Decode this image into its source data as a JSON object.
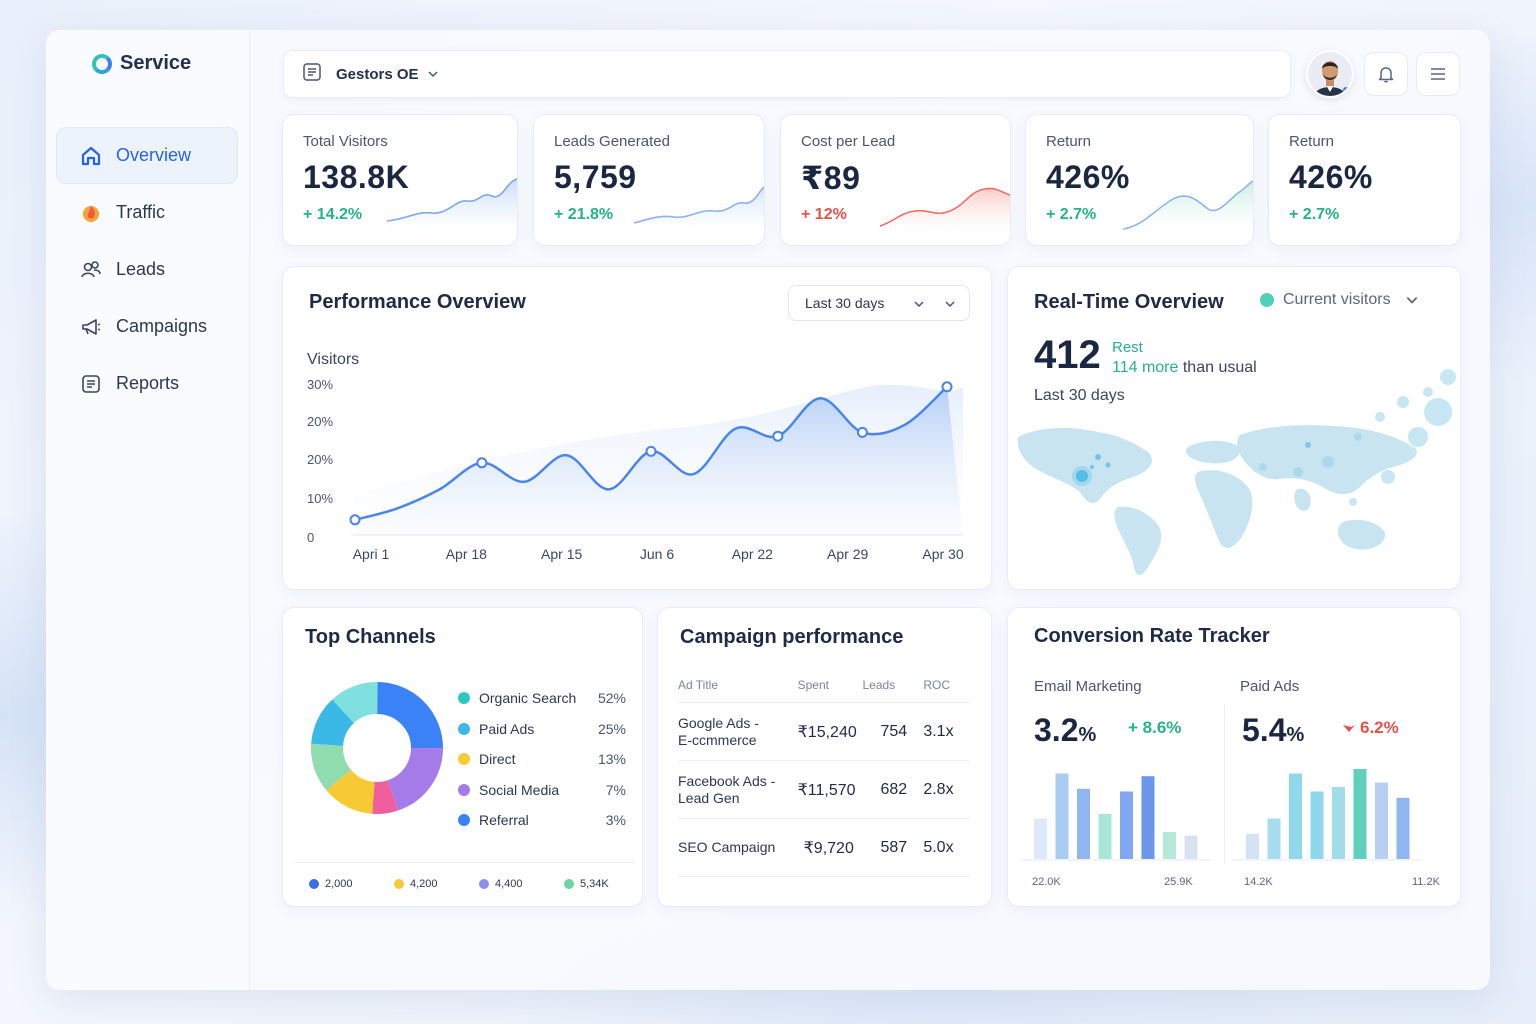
{
  "brand": {
    "name": "Service"
  },
  "sidebar": {
    "items": [
      {
        "label": "Overview",
        "icon": "home-icon",
        "active": true
      },
      {
        "label": "Traffic",
        "icon": "fire-icon",
        "active": false
      },
      {
        "label": "Leads",
        "icon": "users-icon",
        "active": false
      },
      {
        "label": "Campaigns",
        "icon": "megaphone-icon",
        "active": false
      },
      {
        "label": "Reports",
        "icon": "document-icon",
        "active": false
      }
    ]
  },
  "topbar": {
    "workspace": "Gestors OE"
  },
  "kpis": [
    {
      "label": "Total Visitors",
      "value": "138.8K",
      "delta": "+ 14.2%",
      "trend": "up"
    },
    {
      "label": "Leads Generated",
      "value": "5,759",
      "delta": "+ 21.8%",
      "trend": "up"
    },
    {
      "label": "Cost per Lead",
      "value": "₹89",
      "delta": "+ 12%",
      "trend": "down"
    },
    {
      "label": "Return",
      "value": "426%",
      "delta": "+ 2.7%",
      "trend": "up"
    },
    {
      "label": "Return",
      "value": "426%",
      "delta": "+ 2.7%",
      "trend": "up"
    }
  ],
  "performance": {
    "title": "Performance Overview",
    "range": "Last 30 days",
    "ylabel": "Visitors"
  },
  "chart_data": {
    "type": "line",
    "ylabel": "Visitors",
    "y_tick_labels": [
      "0",
      "10%",
      "20%",
      "20%",
      "30%"
    ],
    "x_tick_labels": [
      "Apri 1",
      "Apr 18",
      "Apr 15",
      "Jun 6",
      "Apr  22",
      "Apr  29",
      "Apr  30"
    ],
    "ylim": [
      0,
      40
    ],
    "series": [
      {
        "values": [
          4,
          7,
          12,
          19,
          14,
          21,
          12,
          22,
          16,
          28,
          26,
          36,
          27,
          29,
          39
        ]
      }
    ],
    "grid": false
  },
  "realtime": {
    "title": "Real-Time Overview",
    "filter": "Current visitors",
    "value": "412",
    "status": "Rest",
    "compare_highlight": "114 more",
    "compare_rest": "than usual",
    "period": "Last 30 days"
  },
  "channels": {
    "title": "Top Channels",
    "items": [
      {
        "name": "Organic Search",
        "pct": "52%",
        "color": "#2fc6c2"
      },
      {
        "name": "Paid Ads",
        "pct": "25%",
        "color": "#3bb9e6"
      },
      {
        "name": "Direct",
        "pct": "13%",
        "color": "#f7c935"
      },
      {
        "name": "Social Media",
        "pct": "7%",
        "color": "#a57bea"
      },
      {
        "name": "Referral",
        "pct": "3%",
        "color": "#3b82f6"
      }
    ],
    "footer": [
      {
        "value": "2,000",
        "color": "#3b6fe8"
      },
      {
        "value": "4,200",
        "color": "#f7c935"
      },
      {
        "value": "4,400",
        "color": "#8b8ff0"
      },
      {
        "value": "5,34K",
        "color": "#6fd3a8"
      }
    ]
  },
  "campaigns": {
    "title": "Campaign performance",
    "headers": [
      "Ad Title",
      "Spent",
      "Leads",
      "ROC"
    ],
    "rows": [
      {
        "title_line1": "Google Ads -",
        "title_line2": "E-ccmmerce",
        "spent": "₹15,240",
        "leads": "754",
        "roc": "3.1x"
      },
      {
        "title_line1": "Facebook Ads -",
        "title_line2": "Lead Gen",
        "spent": "₹11,570",
        "leads": "682",
        "roc": "2.8x"
      },
      {
        "title_line1": "SEO Campaign",
        "title_line2": "",
        "spent": "₹9,720",
        "leads": "587",
        "roc": "5.0x"
      }
    ]
  },
  "conversion": {
    "title": "Conversion Rate Tracker",
    "left": {
      "label": "Email Marketing",
      "value": "3.2",
      "unit": "%",
      "delta": "+ 8.6%",
      "trend": "up",
      "axis_left": "22.0K",
      "axis_right": "25.9K",
      "bars": [
        0.45,
        0.95,
        0.78,
        0.5,
        0.75,
        0.92,
        0.3,
        0.26
      ]
    },
    "right": {
      "label": "Paid Ads",
      "value": "5.4",
      "unit": "%",
      "delta": "6.2%",
      "trend": "down",
      "axis_left": "14.2K",
      "axis_right": "11.2K",
      "bars": [
        0.28,
        0.45,
        0.95,
        0.75,
        0.8,
        1.0,
        0.85,
        0.68
      ]
    }
  }
}
